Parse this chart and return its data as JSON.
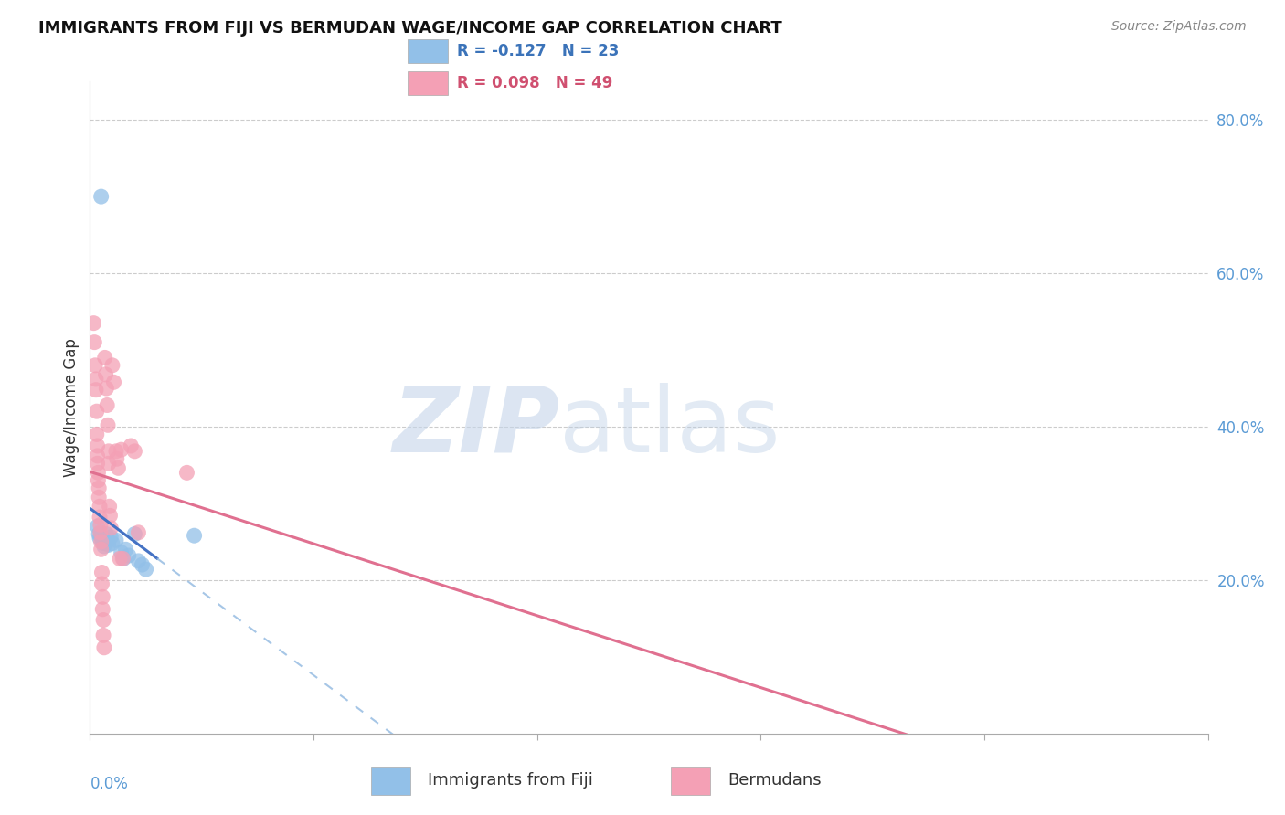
{
  "title": "IMMIGRANTS FROM FIJI VS BERMUDAN WAGE/INCOME GAP CORRELATION CHART",
  "source": "Source: ZipAtlas.com",
  "ylabel": "Wage/Income Gap",
  "right_yticks": [
    "80.0%",
    "60.0%",
    "40.0%",
    "20.0%"
  ],
  "right_ytick_vals": [
    0.8,
    0.6,
    0.4,
    0.2
  ],
  "fiji_color": "#92C0E8",
  "bermuda_color": "#F4A0B5",
  "fiji_line_color": "#4472C4",
  "bermuda_line_color": "#E07090",
  "fiji_line_dash_color": "#90B8E0",
  "xlim": [
    0.0,
    0.15
  ],
  "ylim": [
    0.0,
    0.85
  ],
  "fiji_points": [
    [
      0.0015,
      0.7
    ],
    [
      0.001,
      0.27
    ],
    [
      0.0012,
      0.26
    ],
    [
      0.0013,
      0.255
    ],
    [
      0.0015,
      0.258
    ],
    [
      0.0017,
      0.252
    ],
    [
      0.0018,
      0.248
    ],
    [
      0.0019,
      0.244
    ],
    [
      0.0022,
      0.26
    ],
    [
      0.0024,
      0.252
    ],
    [
      0.0025,
      0.246
    ],
    [
      0.0028,
      0.256
    ],
    [
      0.003,
      0.248
    ],
    [
      0.0035,
      0.252
    ],
    [
      0.0042,
      0.236
    ],
    [
      0.0045,
      0.228
    ],
    [
      0.0048,
      0.24
    ],
    [
      0.0052,
      0.232
    ],
    [
      0.006,
      0.26
    ],
    [
      0.0065,
      0.225
    ],
    [
      0.007,
      0.22
    ],
    [
      0.0075,
      0.214
    ],
    [
      0.014,
      0.258
    ]
  ],
  "bermuda_points": [
    [
      0.0005,
      0.535
    ],
    [
      0.0006,
      0.51
    ],
    [
      0.0007,
      0.48
    ],
    [
      0.0008,
      0.462
    ],
    [
      0.0008,
      0.448
    ],
    [
      0.0009,
      0.42
    ],
    [
      0.0009,
      0.39
    ],
    [
      0.001,
      0.375
    ],
    [
      0.001,
      0.362
    ],
    [
      0.001,
      0.352
    ],
    [
      0.0011,
      0.34
    ],
    [
      0.0011,
      0.33
    ],
    [
      0.0012,
      0.32
    ],
    [
      0.0012,
      0.308
    ],
    [
      0.0013,
      0.296
    ],
    [
      0.0013,
      0.282
    ],
    [
      0.0014,
      0.272
    ],
    [
      0.0014,
      0.262
    ],
    [
      0.0015,
      0.25
    ],
    [
      0.0015,
      0.24
    ],
    [
      0.0016,
      0.21
    ],
    [
      0.0016,
      0.195
    ],
    [
      0.0017,
      0.178
    ],
    [
      0.0017,
      0.162
    ],
    [
      0.0018,
      0.148
    ],
    [
      0.0018,
      0.128
    ],
    [
      0.0019,
      0.112
    ],
    [
      0.002,
      0.49
    ],
    [
      0.0021,
      0.468
    ],
    [
      0.0022,
      0.45
    ],
    [
      0.0023,
      0.428
    ],
    [
      0.0024,
      0.402
    ],
    [
      0.0025,
      0.368
    ],
    [
      0.0025,
      0.352
    ],
    [
      0.0026,
      0.296
    ],
    [
      0.0027,
      0.284
    ],
    [
      0.0028,
      0.268
    ],
    [
      0.003,
      0.48
    ],
    [
      0.0032,
      0.458
    ],
    [
      0.0035,
      0.368
    ],
    [
      0.0036,
      0.358
    ],
    [
      0.0038,
      0.346
    ],
    [
      0.004,
      0.228
    ],
    [
      0.0042,
      0.37
    ],
    [
      0.0044,
      0.228
    ],
    [
      0.0055,
      0.375
    ],
    [
      0.006,
      0.368
    ],
    [
      0.0065,
      0.262
    ],
    [
      0.013,
      0.34
    ]
  ]
}
